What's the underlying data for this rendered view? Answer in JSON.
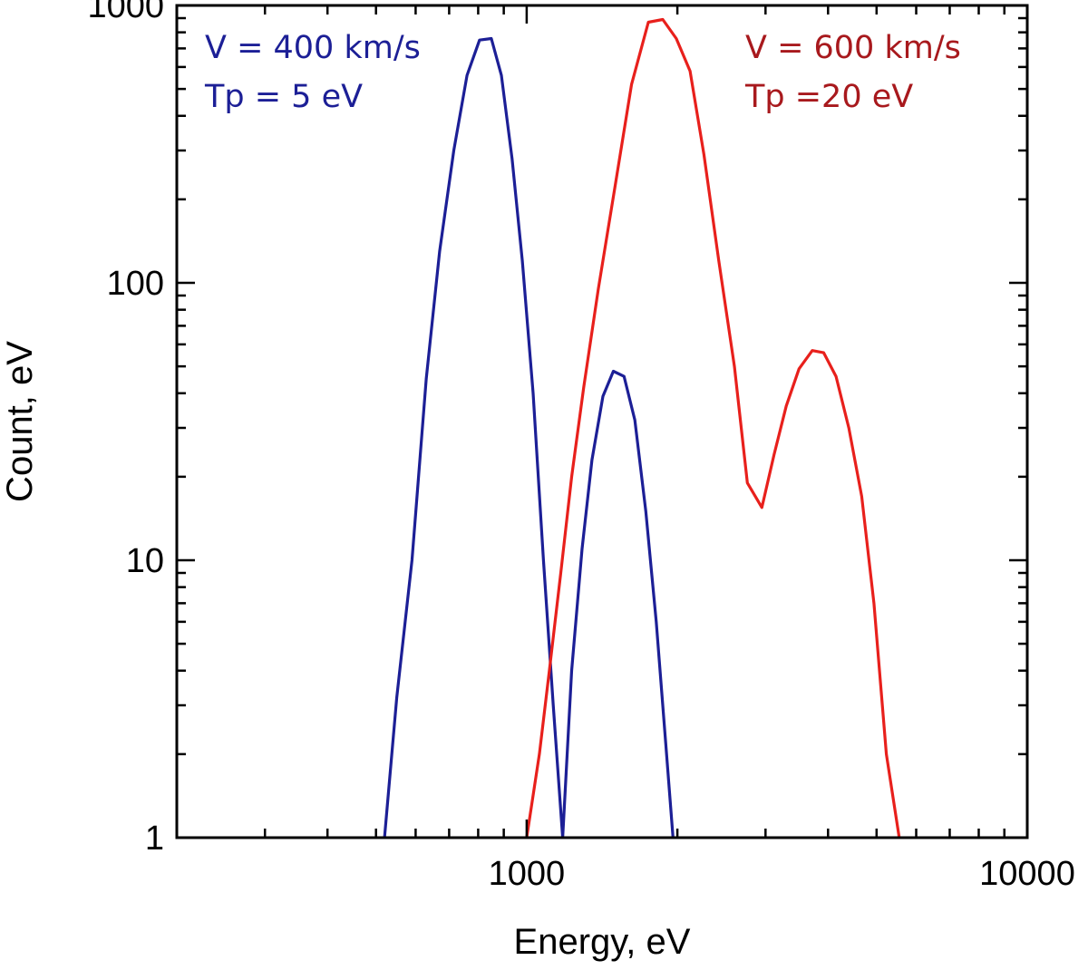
{
  "chart_data": {
    "type": "line",
    "xscale": "log",
    "yscale": "log",
    "xlabel": "Energy, eV",
    "ylabel": "Count, eV",
    "xlim": [
      200,
      10000
    ],
    "ylim": [
      1,
      1000
    ],
    "x_tick_labels": [
      {
        "value": 1000,
        "label": "1000"
      },
      {
        "value": 10000,
        "label": "10000"
      }
    ],
    "y_tick_labels": [
      {
        "value": 1,
        "label": "1"
      },
      {
        "value": 10,
        "label": "10"
      },
      {
        "value": 100,
        "label": "100"
      },
      {
        "value": 1000,
        "label": "1000"
      }
    ],
    "annotations": {
      "blue": {
        "line1": "V = 400 km/s",
        "line2": "Tp = 5 eV"
      },
      "red": {
        "line1": "V = 600 km/s",
        "line2": "Tp =20 eV"
      }
    },
    "series": [
      {
        "name": "V = 400 km/s, Tp = 5 eV",
        "color": "#1c1f96",
        "points": [
          [
            520,
            1
          ],
          [
            550,
            3.2
          ],
          [
            590,
            10
          ],
          [
            630,
            45
          ],
          [
            670,
            130
          ],
          [
            715,
            300
          ],
          [
            760,
            560
          ],
          [
            805,
            750
          ],
          [
            850,
            760
          ],
          [
            890,
            560
          ],
          [
            935,
            280
          ],
          [
            980,
            120
          ],
          [
            1030,
            40
          ],
          [
            1080,
            10
          ],
          [
            1130,
            3
          ],
          [
            1180,
            1
          ],
          [
            1230,
            4
          ],
          [
            1290,
            11
          ],
          [
            1350,
            23
          ],
          [
            1420,
            39
          ],
          [
            1490,
            48
          ],
          [
            1565,
            46
          ],
          [
            1645,
            32
          ],
          [
            1730,
            15
          ],
          [
            1815,
            6
          ],
          [
            1895,
            2.2
          ],
          [
            1960,
            1
          ]
        ]
      },
      {
        "name": "V = 600 km/s, Tp =20 eV",
        "color": "#e8201c",
        "points": [
          [
            1000,
            1
          ],
          [
            1060,
            2
          ],
          [
            1110,
            4
          ],
          [
            1170,
            9
          ],
          [
            1230,
            20
          ],
          [
            1300,
            42
          ],
          [
            1390,
            95
          ],
          [
            1500,
            220
          ],
          [
            1620,
            520
          ],
          [
            1750,
            870
          ],
          [
            1870,
            890
          ],
          [
            1990,
            760
          ],
          [
            2120,
            580
          ],
          [
            2260,
            290
          ],
          [
            2420,
            120
          ],
          [
            2600,
            50
          ],
          [
            2760,
            19
          ],
          [
            2950,
            15.5
          ],
          [
            3120,
            24
          ],
          [
            3300,
            36
          ],
          [
            3500,
            49
          ],
          [
            3720,
            57
          ],
          [
            3920,
            56
          ],
          [
            4150,
            46
          ],
          [
            4400,
            30
          ],
          [
            4670,
            17
          ],
          [
            4940,
            7
          ],
          [
            5230,
            2
          ],
          [
            5550,
            1
          ]
        ]
      }
    ]
  }
}
